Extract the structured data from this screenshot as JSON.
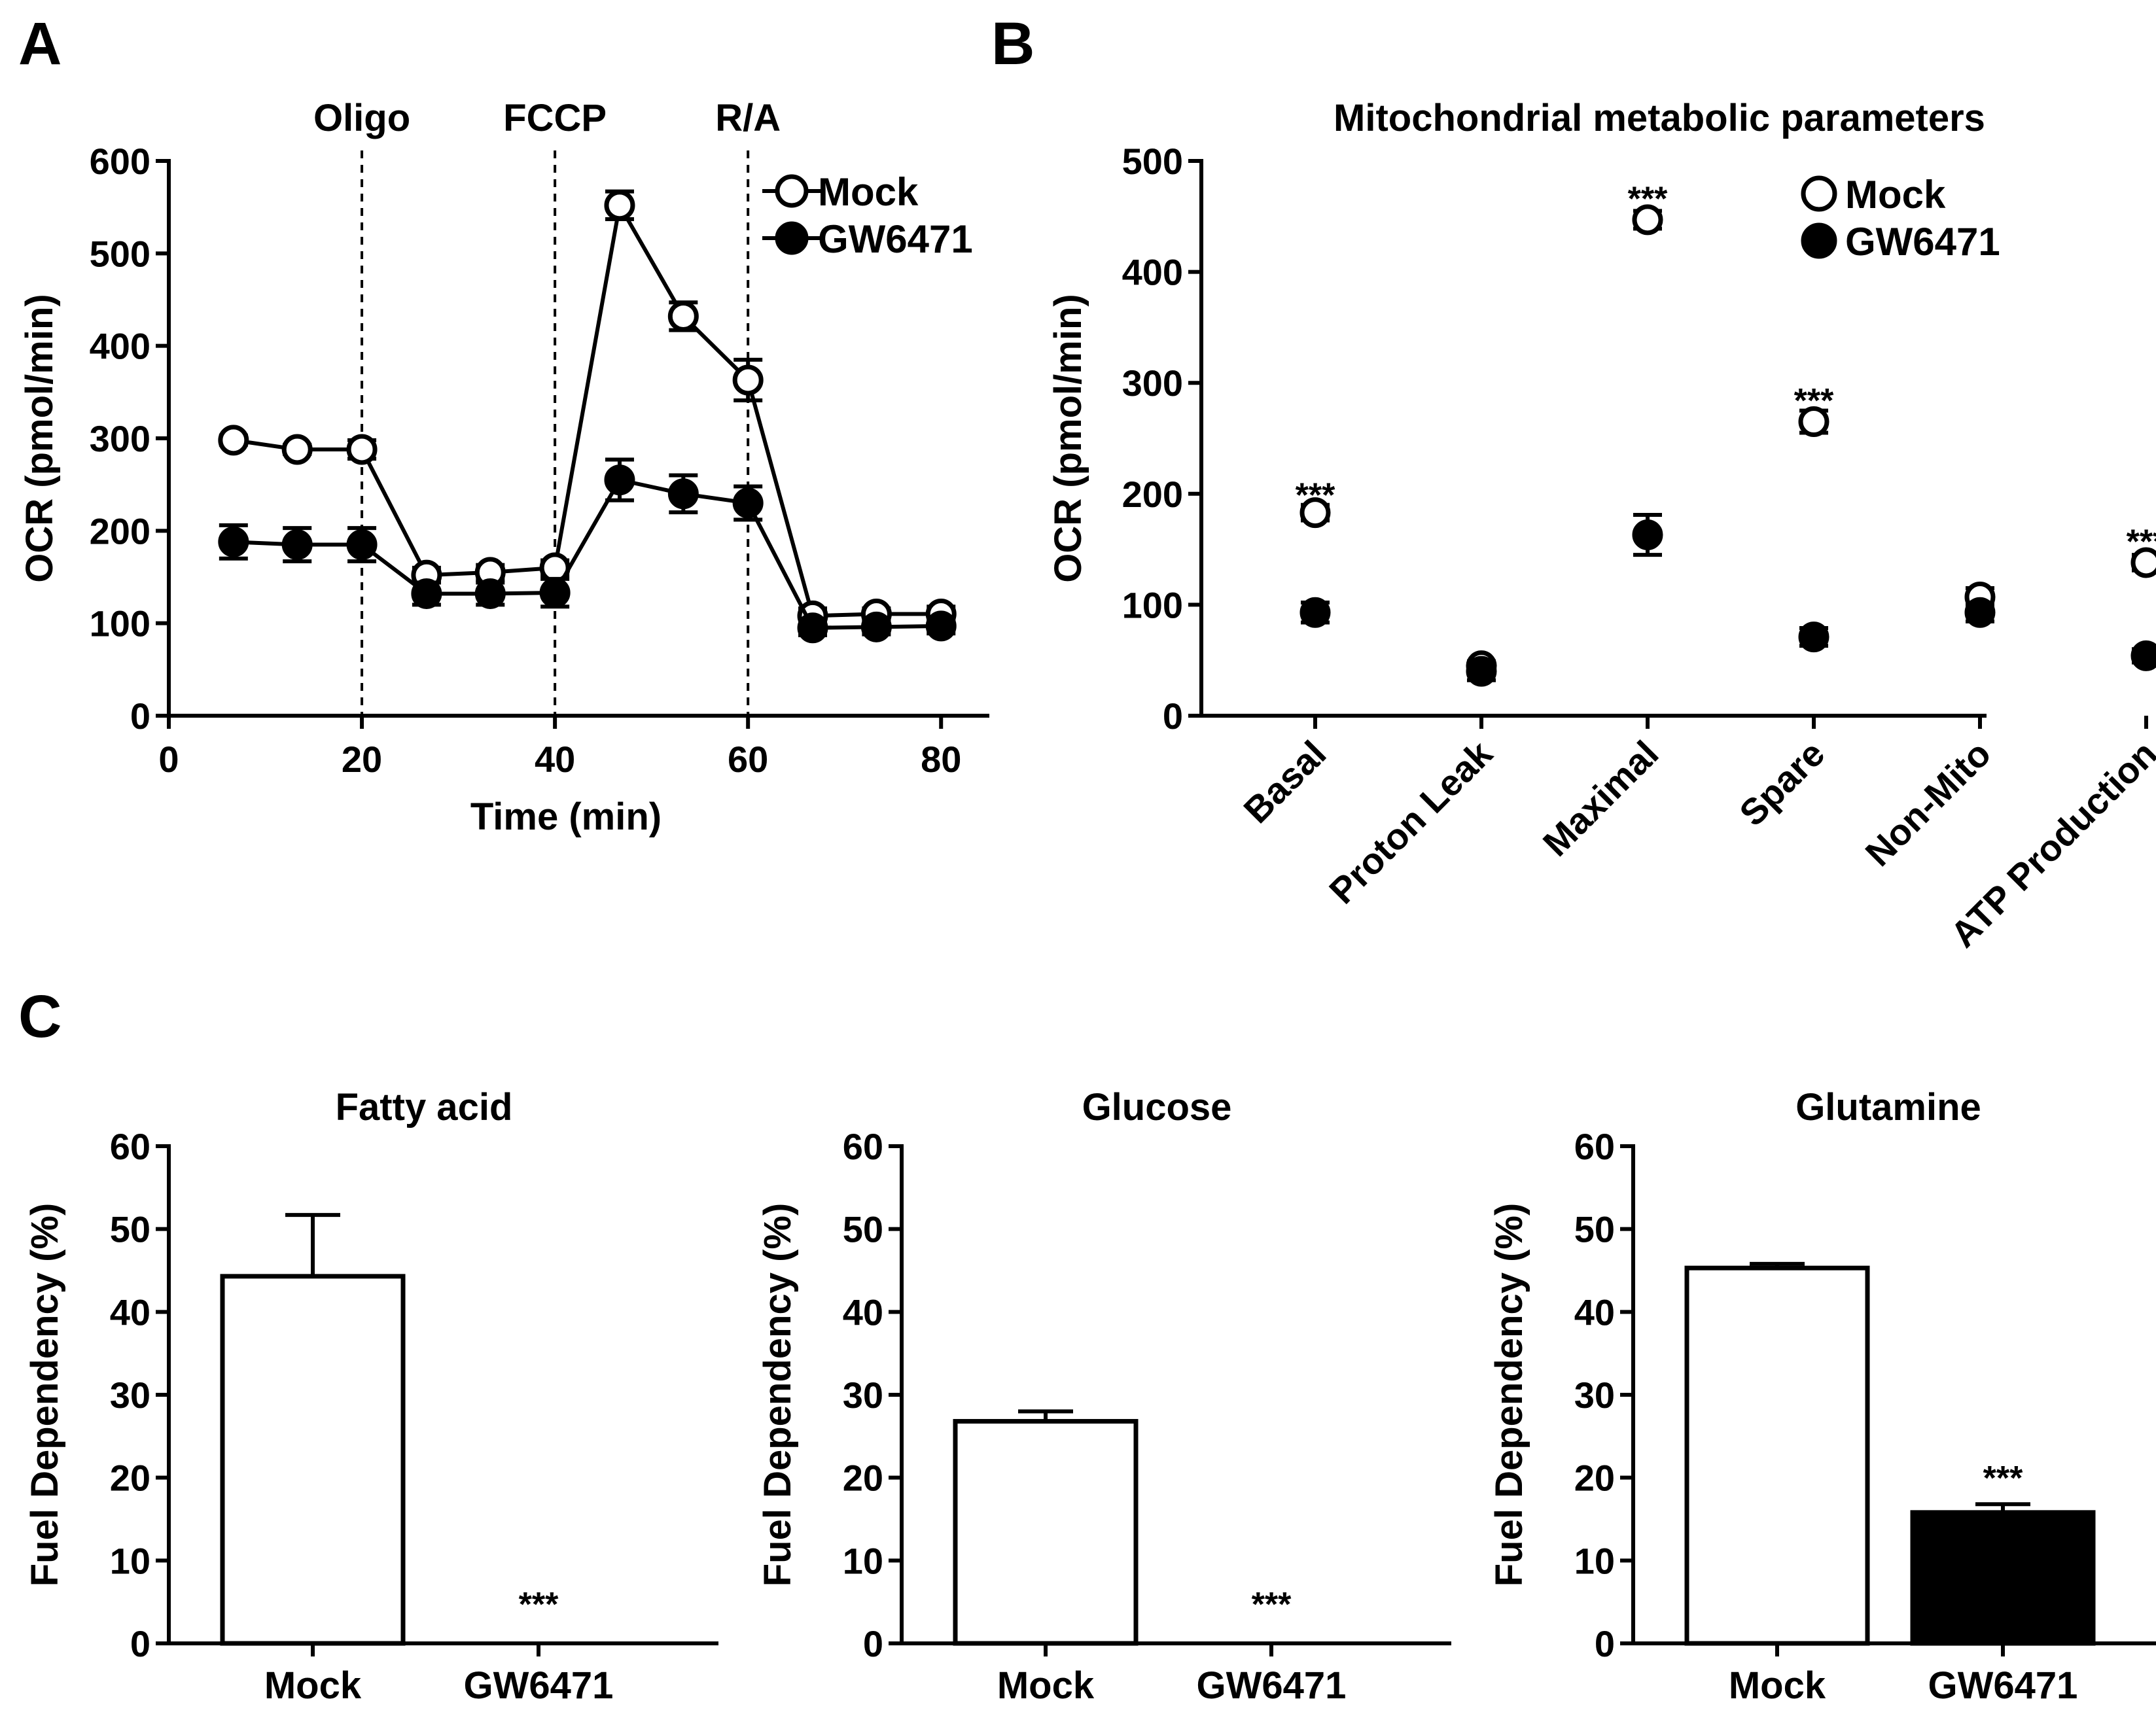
{
  "figure": {
    "panel_labels": [
      "A",
      "B",
      "C"
    ]
  },
  "colors": {
    "open": "#ffffff",
    "filled": "#000000",
    "axis": "#000000"
  },
  "chart_data": [
    {
      "id": "A",
      "type": "line",
      "title": "",
      "xlabel": "Time (min)",
      "ylabel": "OCR (pmol/min)",
      "xlim": [
        0,
        85
      ],
      "ylim": [
        0,
        600
      ],
      "xticks": [
        "0",
        "20",
        "40",
        "60",
        "80"
      ],
      "yticks": [
        "0",
        "100",
        "200",
        "300",
        "400",
        "500",
        "600"
      ],
      "vlines": [
        {
          "x": 20,
          "label": "Oligo"
        },
        {
          "x": 40,
          "label": "FCCP"
        },
        {
          "x": 60,
          "label": "R/A"
        }
      ],
      "x": [
        6.7,
        13.3,
        20,
        26.7,
        33.3,
        40,
        46.7,
        53.3,
        60,
        66.7,
        73.3,
        80
      ],
      "series": [
        {
          "name": "Mock",
          "marker": "open",
          "values": [
            298,
            288,
            288,
            152,
            155,
            160,
            552,
            432,
            363,
            108,
            110,
            110
          ],
          "errors": [
            5,
            5,
            10,
            8,
            8,
            8,
            15,
            15,
            22,
            8,
            6,
            8
          ]
        },
        {
          "name": "GW6471",
          "marker": "filled",
          "values": [
            188,
            185,
            185,
            132,
            132,
            133,
            255,
            240,
            230,
            95,
            96,
            97
          ],
          "errors": [
            18,
            18,
            18,
            12,
            12,
            15,
            22,
            20,
            18,
            8,
            8,
            8
          ]
        }
      ],
      "legend": [
        "Mock",
        "GW6471"
      ],
      "legend_position": "top-right"
    },
    {
      "id": "B",
      "type": "scatter",
      "title": "Mitochondrial metabolic parameters",
      "xlabel": "",
      "ylabel": "OCR (pmol/min)",
      "ylim": [
        0,
        500
      ],
      "yticks": [
        "0",
        "100",
        "200",
        "300",
        "400",
        "500"
      ],
      "categories": [
        "Basal",
        "Proton Leak",
        "Maximal",
        "Spare",
        "Non-Mito",
        "ATP Production"
      ],
      "series": [
        {
          "name": "Mock",
          "marker": "open",
          "values": [
            183,
            45,
            447,
            265,
            107,
            138
          ],
          "errors": [
            7,
            4,
            8,
            10,
            8,
            7
          ]
        },
        {
          "name": "GW6471",
          "marker": "filled",
          "values": [
            93,
            40,
            163,
            71,
            93,
            54
          ],
          "errors": [
            9,
            8,
            18,
            8,
            8,
            6
          ]
        }
      ],
      "annotations": [
        {
          "category": "Basal",
          "y": 205,
          "text": "***"
        },
        {
          "category": "Maximal",
          "y": 472,
          "text": "***"
        },
        {
          "category": "Spare",
          "y": 290,
          "text": "***"
        },
        {
          "category": "ATP Production",
          "y": 163,
          "text": "***"
        }
      ],
      "legend": [
        "Mock",
        "GW6471"
      ],
      "legend_position": "top-right"
    },
    {
      "id": "C1",
      "type": "bar",
      "title": "Fatty acid",
      "ylabel": "Fuel Dependency (%)",
      "ylim": [
        0,
        60
      ],
      "yticks": [
        "0",
        "10",
        "20",
        "30",
        "40",
        "50",
        "60"
      ],
      "categories": [
        "Mock",
        "GW6471"
      ],
      "values": [
        44.3,
        0
      ],
      "errors": [
        7.4,
        0
      ],
      "annotations": [
        "",
        "***"
      ]
    },
    {
      "id": "C2",
      "type": "bar",
      "title": "Glucose",
      "ylabel": "Fuel Dependency (%)",
      "ylim": [
        0,
        60
      ],
      "yticks": [
        "0",
        "10",
        "20",
        "30",
        "40",
        "50",
        "60"
      ],
      "categories": [
        "Mock",
        "GW6471"
      ],
      "values": [
        26.8,
        0
      ],
      "errors": [
        1.2,
        0
      ],
      "annotations": [
        "",
        "***"
      ]
    },
    {
      "id": "C3",
      "type": "bar",
      "title": "Glutamine",
      "ylabel": "Fuel Dependency (%)",
      "ylim": [
        0,
        60
      ],
      "yticks": [
        "0",
        "10",
        "20",
        "30",
        "40",
        "50",
        "60"
      ],
      "categories": [
        "Mock",
        "GW6471"
      ],
      "values": [
        45.3,
        15.8
      ],
      "errors": [
        0.5,
        1.0
      ],
      "annotations": [
        "",
        "***"
      ]
    }
  ]
}
